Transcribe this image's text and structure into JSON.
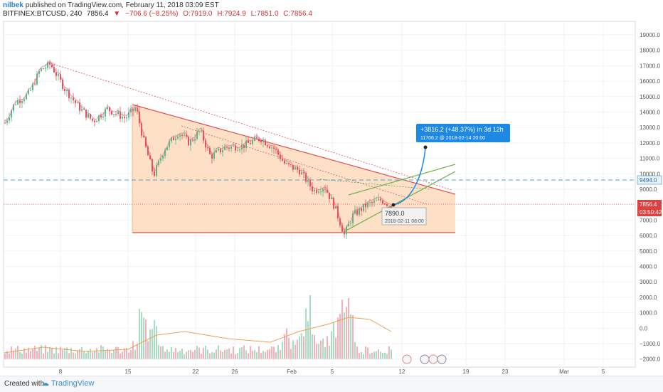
{
  "header": {
    "author": "nilbek",
    "published": "published on TradingView.com, February 11, 2018 03:09 EST",
    "symbol": "BITFINEX:BTCUSD, 240",
    "last": "7856.4",
    "change": "−706.6 (−8.25%)",
    "open": "O:7919.0",
    "high": "H:7924.9",
    "low": "L:7851.0",
    "close": "C:7856.4"
  },
  "chart_data": {
    "type": "candlestick",
    "y_ticks": [
      "19000.0",
      "18000.0",
      "17000.0",
      "16000.0",
      "15000.0",
      "14000.0",
      "13000.0",
      "12000.0",
      "11000.0",
      "10000.0",
      "9000.0",
      "8000.0",
      "7000.0",
      "6000.0",
      "5000.0",
      "4000.0",
      "3000.0",
      "2000.0",
      "1000.0",
      "0.0",
      "−1000.0",
      "−2000.0"
    ],
    "x_ticks": [
      "8",
      "15",
      "22",
      "26",
      "Feb",
      "5",
      "12",
      "19",
      "23",
      "Mar",
      "5"
    ],
    "ylim": [
      -2500,
      19500
    ],
    "price_labels": {
      "dashed_level": "9494.0",
      "last_price": "7856.4",
      "countdown": "03:50:42"
    },
    "projection": {
      "headline": "+3816.2 (+48.37%) in 3d 12h",
      "detail": "11706.2  @ 2018-02-14  20:00"
    },
    "cursor": {
      "value": "7890.0",
      "time": "2018-02-11 08:00"
    }
  },
  "footer": {
    "created": "Created with",
    "brand": "TradingView"
  },
  "colors": {
    "up": "#53b987",
    "down": "#eb4d5c",
    "triangle_fill": "#fde0c5",
    "triangle_line": "#e05050",
    "projection_bg": "#1e88e5",
    "dashed_level": "#4aa3d6"
  }
}
